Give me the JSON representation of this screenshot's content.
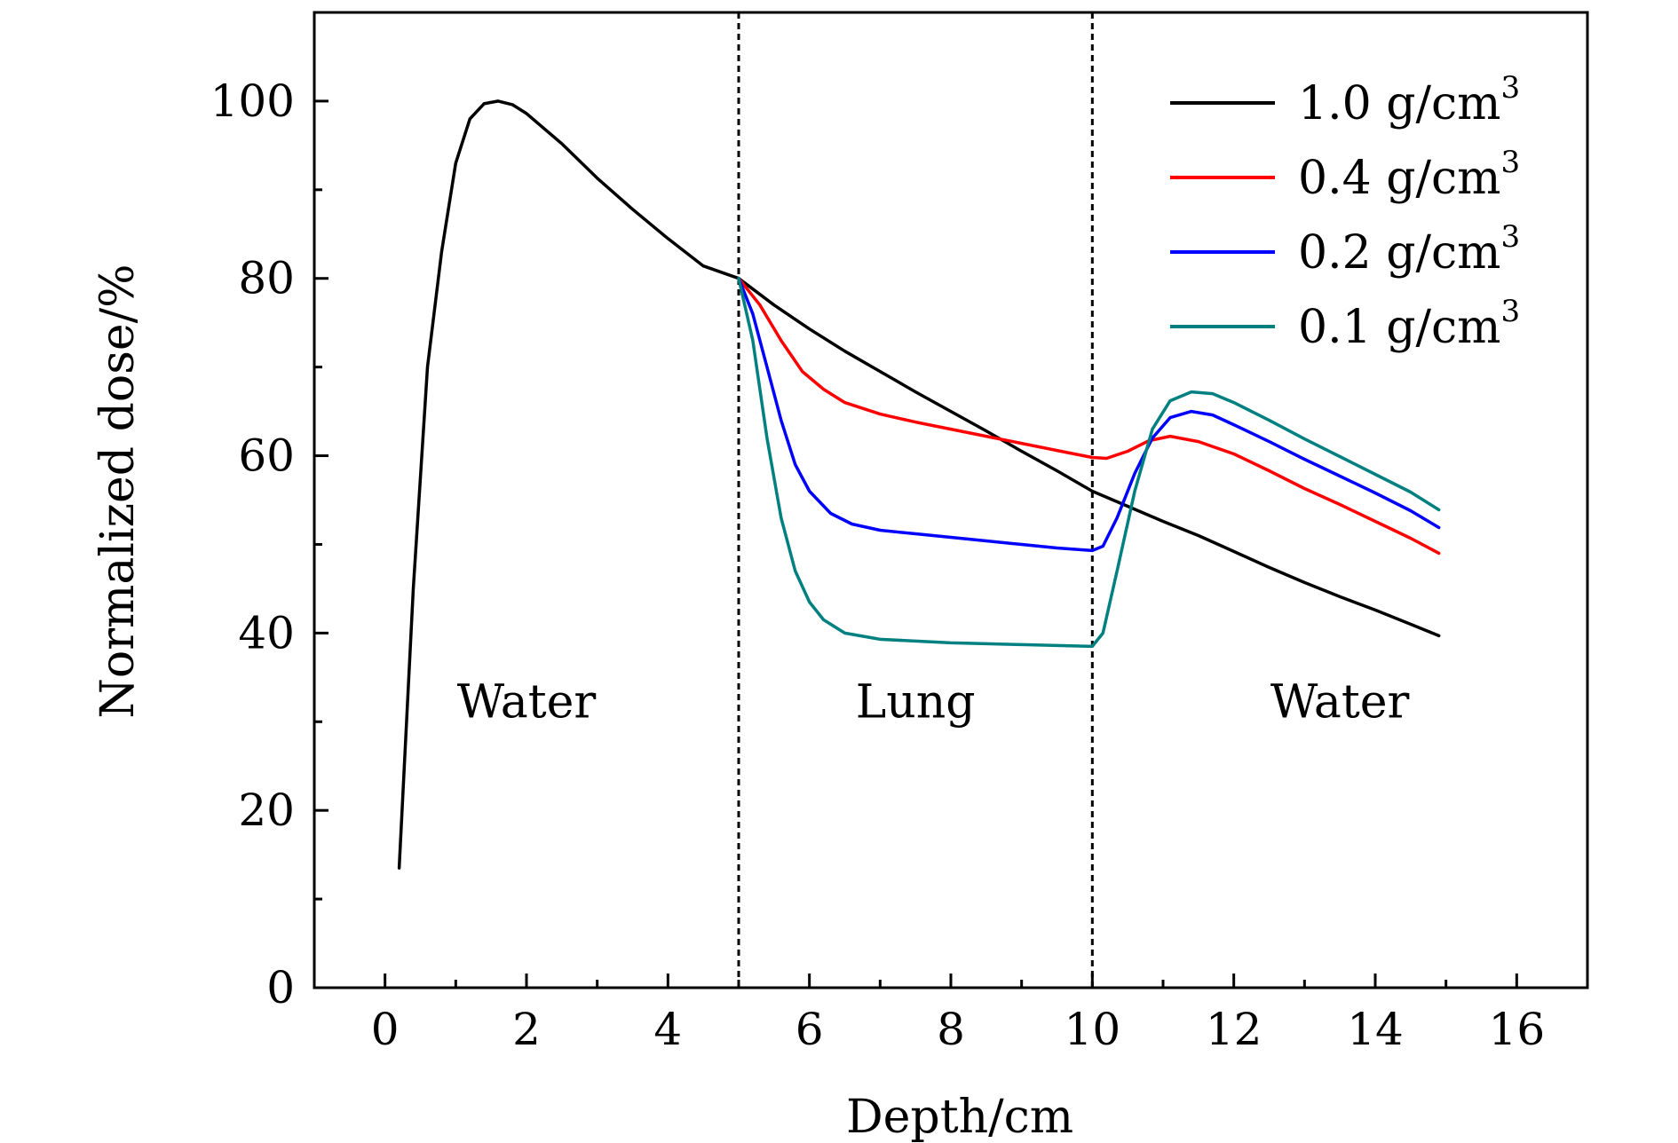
{
  "chart_data": {
    "type": "line",
    "title": "",
    "xlabel": "Depth/cm",
    "ylabel": "Normalized dose/%",
    "xlim": [
      -1,
      17
    ],
    "ylim": [
      0,
      110
    ],
    "grid": false,
    "legend_position": "top-right",
    "x_major_ticks": [
      0,
      2,
      4,
      6,
      8,
      10,
      12,
      14,
      16
    ],
    "x_tick_labels": [
      "0",
      "2",
      "4",
      "6",
      "8",
      "10",
      "12",
      "14",
      "16"
    ],
    "y_major_ticks": [
      0,
      20,
      40,
      60,
      80,
      100
    ],
    "y_tick_labels": [
      "0",
      "20",
      "40",
      "60",
      "80",
      "100"
    ],
    "boundaries": [
      5,
      10
    ],
    "regions": [
      {
        "label": "Water",
        "x": 2,
        "y": 30.5
      },
      {
        "label": "Lung",
        "x": 7.5,
        "y": 30.5
      },
      {
        "label": "Water",
        "x": 13.5,
        "y": 30.5
      }
    ],
    "series": [
      {
        "name": "1.0 g/cm",
        "superscript": "3",
        "color": "#000000",
        "points": [
          [
            0.2,
            13.5
          ],
          [
            0.4,
            45
          ],
          [
            0.6,
            70
          ],
          [
            0.8,
            83
          ],
          [
            1.0,
            93
          ],
          [
            1.2,
            98
          ],
          [
            1.4,
            99.7
          ],
          [
            1.6,
            100
          ],
          [
            1.8,
            99.6
          ],
          [
            2.0,
            98.6
          ],
          [
            2.5,
            95.2
          ],
          [
            3.0,
            91.3
          ],
          [
            3.5,
            87.8
          ],
          [
            4.0,
            84.5
          ],
          [
            4.5,
            81.4
          ],
          [
            5.0,
            80
          ],
          [
            5.5,
            77
          ],
          [
            6.0,
            74.3
          ],
          [
            6.5,
            71.8
          ],
          [
            7.0,
            69.5
          ],
          [
            7.5,
            67.2
          ],
          [
            8.0,
            65
          ],
          [
            8.5,
            62.8
          ],
          [
            9.0,
            60.5
          ],
          [
            9.5,
            58.3
          ],
          [
            10.0,
            56
          ],
          [
            10.5,
            54.3
          ],
          [
            11.0,
            52.6
          ],
          [
            11.5,
            51
          ],
          [
            12.0,
            49.2
          ],
          [
            12.5,
            47.4
          ],
          [
            13.0,
            45.7
          ],
          [
            13.5,
            44.1
          ],
          [
            14.0,
            42.6
          ],
          [
            14.5,
            41
          ],
          [
            14.9,
            39.7
          ]
        ]
      },
      {
        "name": "0.4 g/cm",
        "superscript": "3",
        "color": "#ff0000",
        "points": [
          [
            5.0,
            80
          ],
          [
            5.3,
            77
          ],
          [
            5.6,
            73
          ],
          [
            5.9,
            69.5
          ],
          [
            6.2,
            67.5
          ],
          [
            6.5,
            66
          ],
          [
            7.0,
            64.7
          ],
          [
            7.5,
            63.8
          ],
          [
            8.0,
            63
          ],
          [
            8.5,
            62.2
          ],
          [
            9.0,
            61.4
          ],
          [
            9.5,
            60.6
          ],
          [
            10.0,
            59.8
          ],
          [
            10.2,
            59.7
          ],
          [
            10.5,
            60.5
          ],
          [
            10.8,
            61.7
          ],
          [
            11.1,
            62.2
          ],
          [
            11.5,
            61.6
          ],
          [
            12.0,
            60.2
          ],
          [
            12.5,
            58.3
          ],
          [
            13.0,
            56.3
          ],
          [
            13.5,
            54.5
          ],
          [
            14.0,
            52.6
          ],
          [
            14.5,
            50.7
          ],
          [
            14.9,
            49
          ]
        ]
      },
      {
        "name": "0.2 g/cm",
        "superscript": "3",
        "color": "#0000ff",
        "points": [
          [
            5.0,
            80
          ],
          [
            5.2,
            76
          ],
          [
            5.4,
            70
          ],
          [
            5.6,
            64
          ],
          [
            5.8,
            59
          ],
          [
            6.0,
            56
          ],
          [
            6.3,
            53.5
          ],
          [
            6.6,
            52.3
          ],
          [
            7.0,
            51.6
          ],
          [
            7.5,
            51.2
          ],
          [
            8.0,
            50.8
          ],
          [
            8.5,
            50.4
          ],
          [
            9.0,
            50
          ],
          [
            9.5,
            49.6
          ],
          [
            10.0,
            49.3
          ],
          [
            10.15,
            49.8
          ],
          [
            10.35,
            53
          ],
          [
            10.6,
            58
          ],
          [
            10.85,
            62
          ],
          [
            11.1,
            64.3
          ],
          [
            11.4,
            65
          ],
          [
            11.7,
            64.6
          ],
          [
            12.0,
            63.5
          ],
          [
            12.5,
            61.6
          ],
          [
            13.0,
            59.6
          ],
          [
            13.5,
            57.7
          ],
          [
            14.0,
            55.8
          ],
          [
            14.5,
            53.8
          ],
          [
            14.9,
            51.9
          ]
        ]
      },
      {
        "name": "0.1 g/cm",
        "superscript": "3",
        "color": "#008080",
        "points": [
          [
            5.0,
            80
          ],
          [
            5.2,
            73
          ],
          [
            5.4,
            62
          ],
          [
            5.6,
            53
          ],
          [
            5.8,
            47
          ],
          [
            6.0,
            43.5
          ],
          [
            6.2,
            41.5
          ],
          [
            6.5,
            40
          ],
          [
            7.0,
            39.3
          ],
          [
            7.5,
            39.1
          ],
          [
            8.0,
            38.9
          ],
          [
            8.5,
            38.8
          ],
          [
            9.0,
            38.7
          ],
          [
            9.5,
            38.6
          ],
          [
            10.0,
            38.5
          ],
          [
            10.15,
            40
          ],
          [
            10.35,
            47
          ],
          [
            10.6,
            56
          ],
          [
            10.85,
            63
          ],
          [
            11.1,
            66.2
          ],
          [
            11.4,
            67.2
          ],
          [
            11.7,
            67
          ],
          [
            12.0,
            66
          ],
          [
            12.5,
            64
          ],
          [
            13.0,
            61.9
          ],
          [
            13.5,
            59.9
          ],
          [
            14.0,
            57.9
          ],
          [
            14.5,
            55.9
          ],
          [
            14.9,
            53.9
          ]
        ]
      }
    ]
  }
}
